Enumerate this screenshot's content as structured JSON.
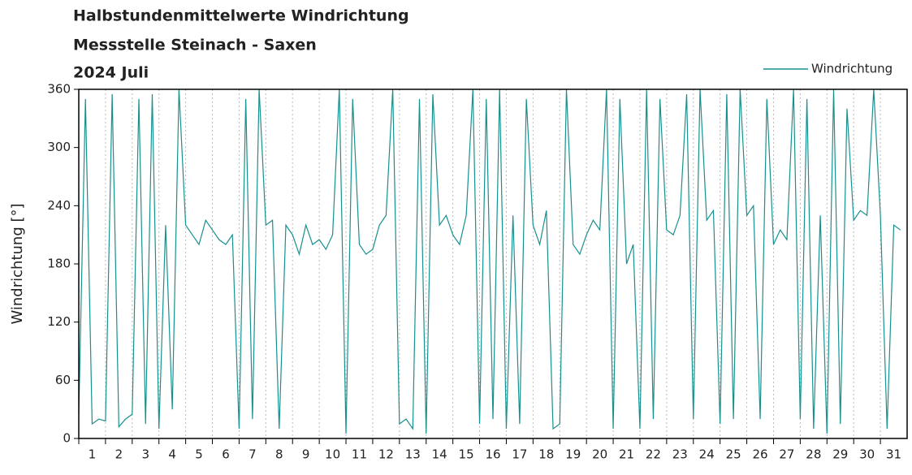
{
  "chart_data": {
    "type": "line",
    "title": [
      "Halbstundenmittelwerte Windrichtung",
      "Messstelle Steinach - Saxen",
      "2024 Juli"
    ],
    "y_label": "Windrichtung [°]",
    "xlim": [
      1,
      32
    ],
    "xticks": [
      1,
      2,
      3,
      4,
      5,
      6,
      7,
      8,
      9,
      10,
      11,
      12,
      13,
      14,
      15,
      16,
      17,
      18,
      19,
      20,
      21,
      22,
      23,
      24,
      25,
      26,
      27,
      28,
      29,
      30,
      31
    ],
    "ylim": [
      0,
      360
    ],
    "yticks": [
      0,
      60,
      120,
      180,
      240,
      300,
      360
    ],
    "grid": true,
    "legend": "top-right",
    "series": [
      {
        "name": "Windrichtung",
        "color": "#18908f",
        "x": [
          1,
          1.25,
          1.5,
          1.75,
          2,
          2.25,
          2.5,
          2.75,
          3,
          3.25,
          3.5,
          3.75,
          4,
          4.25,
          4.5,
          4.75,
          5,
          5.25,
          5.5,
          5.75,
          6,
          6.25,
          6.5,
          6.75,
          7,
          7.25,
          7.5,
          7.75,
          8,
          8.25,
          8.5,
          8.75,
          9,
          9.25,
          9.5,
          9.75,
          10,
          10.25,
          10.5,
          10.75,
          11,
          11.25,
          11.5,
          11.75,
          12,
          12.25,
          12.5,
          12.75,
          13,
          13.25,
          13.5,
          13.75,
          14,
          14.25,
          14.5,
          14.75,
          15,
          15.25,
          15.5,
          15.75,
          16,
          16.25,
          16.5,
          16.75,
          17,
          17.25,
          17.5,
          17.75,
          18,
          18.25,
          18.5,
          18.75,
          19,
          19.25,
          19.5,
          19.75,
          20,
          20.25,
          20.5,
          20.75,
          21,
          21.25,
          21.5,
          21.75,
          22,
          22.25,
          22.5,
          22.75,
          23,
          23.25,
          23.5,
          23.75,
          24,
          24.25,
          24.5,
          24.75,
          25,
          25.25,
          25.5,
          25.75,
          26,
          26.25,
          26.5,
          26.75,
          27,
          27.25,
          27.5,
          27.75,
          28,
          28.25,
          28.5,
          28.75,
          29,
          29.25,
          29.5,
          29.75,
          30,
          30.25,
          30.5,
          30.75,
          31,
          31.25,
          31.5,
          31.75
        ],
        "values": [
          25,
          350,
          15,
          20,
          18,
          355,
          12,
          20,
          25,
          350,
          15,
          355,
          10,
          220,
          30,
          360,
          220,
          210,
          200,
          225,
          215,
          205,
          200,
          210,
          10,
          350,
          20,
          360,
          220,
          225,
          10,
          220,
          210,
          190,
          220,
          200,
          205,
          195,
          210,
          360,
          5,
          350,
          200,
          190,
          195,
          220,
          230,
          360,
          15,
          20,
          10,
          350,
          5,
          355,
          220,
          230,
          210,
          200,
          230,
          360,
          15,
          350,
          20,
          360,
          10,
          230,
          15,
          350,
          220,
          200,
          235,
          10,
          15,
          360,
          200,
          190,
          210,
          225,
          215,
          360,
          10,
          350,
          180,
          200,
          10,
          360,
          20,
          350,
          215,
          210,
          230,
          355,
          20,
          360,
          225,
          235,
          15,
          355,
          20,
          360,
          230,
          240,
          20,
          350,
          200,
          215,
          205,
          360,
          20,
          350,
          10,
          230,
          5,
          360,
          15,
          340,
          225,
          235,
          230,
          360,
          230,
          10,
          220,
          215
        ]
      }
    ]
  }
}
